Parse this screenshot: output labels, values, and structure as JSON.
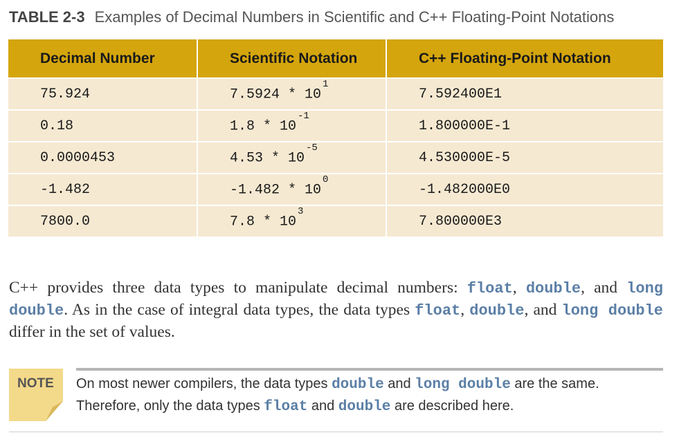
{
  "caption": {
    "tag": "TABLE 2-3",
    "title": "Examples of Decimal Numbers in Scientific and C++ Floating-Point Notations"
  },
  "table": {
    "headers": [
      "Decimal Number",
      "Scientific Notation",
      "C++ Floating-Point Notation"
    ],
    "rows": [
      {
        "decimal": "75.924",
        "sci_mantissa": "7.5924 * 10",
        "sci_exponent": "1",
        "cpp": "7.592400E1"
      },
      {
        "decimal": "0.18",
        "sci_mantissa": "1.8 * 10",
        "sci_exponent": "-1",
        "cpp": "1.800000E-1"
      },
      {
        "decimal": "0.0000453",
        "sci_mantissa": "4.53 * 10",
        "sci_exponent": "-5",
        "cpp": "4.530000E-5"
      },
      {
        "decimal": "-1.482",
        "sci_mantissa": "-1.482 * 10",
        "sci_exponent": "0",
        "cpp": "-1.482000E0"
      },
      {
        "decimal": "7800.0",
        "sci_mantissa": "7.8 * 10",
        "sci_exponent": "3",
        "cpp": "7.800000E3"
      }
    ]
  },
  "paragraph": {
    "t1": "C++ provides three data types to manipulate decimal numbers: ",
    "c1": "float",
    "t2": ", ",
    "c2": "double",
    "t3": ", and ",
    "c3": "long double",
    "t4": ". As in the case of integral data types, the data types ",
    "c4": "float",
    "t5": ", ",
    "c5": "double",
    "t6": ", and ",
    "c6": "long double",
    "t7": " differ in the set of values."
  },
  "note": {
    "label": "NOTE",
    "t1": "On most newer compilers, the data types ",
    "c1": "double",
    "t2": " and ",
    "c2": "long double",
    "t3": " are the same. Therefore, only the data types ",
    "c3": "float",
    "t4": " and ",
    "c4": "double",
    "t5": " are described here."
  },
  "colors": {
    "header_bg": "#d4a50d",
    "row_bg": "#f5e9d2",
    "code_text": "#5b7fa6",
    "note_tab": "#f3d98a"
  }
}
